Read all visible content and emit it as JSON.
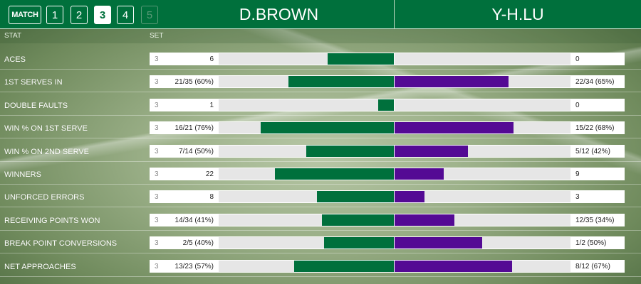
{
  "header": {
    "match_label": "MATCH",
    "sets": [
      {
        "label": "1",
        "state": "normal"
      },
      {
        "label": "2",
        "state": "normal"
      },
      {
        "label": "3",
        "state": "active"
      },
      {
        "label": "4",
        "state": "normal"
      },
      {
        "label": "5",
        "state": "disabled"
      }
    ],
    "player1": "D.BROWN",
    "player2": "Y-H.LU"
  },
  "columns": {
    "stat": "STAT",
    "set": "SET"
  },
  "colors": {
    "player1": "#00703c",
    "player2": "#540a94"
  },
  "stats": [
    {
      "label": "ACES",
      "set": "3",
      "left": "6",
      "right": "0",
      "left_frac": 0.38,
      "right_frac": 0.0
    },
    {
      "label": "1ST SERVES IN",
      "set": "3",
      "left": "21/35 (60%)",
      "right": "22/34 (65%)",
      "left_frac": 0.6,
      "right_frac": 0.65
    },
    {
      "label": "DOUBLE FAULTS",
      "set": "3",
      "left": "1",
      "right": "0",
      "left_frac": 0.09,
      "right_frac": 0.0
    },
    {
      "label": "WIN % ON 1ST SERVE",
      "set": "3",
      "left": "16/21 (76%)",
      "right": "15/22 (68%)",
      "left_frac": 0.76,
      "right_frac": 0.68
    },
    {
      "label": "WIN % ON 2ND SERVE",
      "set": "3",
      "left": "7/14 (50%)",
      "right": "5/12 (42%)",
      "left_frac": 0.5,
      "right_frac": 0.42
    },
    {
      "label": "WINNERS",
      "set": "3",
      "left": "22",
      "right": "9",
      "left_frac": 0.68,
      "right_frac": 0.28
    },
    {
      "label": "UNFORCED ERRORS",
      "set": "3",
      "left": "8",
      "right": "3",
      "left_frac": 0.44,
      "right_frac": 0.17
    },
    {
      "label": "RECEIVING POINTS WON",
      "set": "3",
      "left": "14/34 (41%)",
      "right": "12/35 (34%)",
      "left_frac": 0.41,
      "right_frac": 0.34
    },
    {
      "label": "BREAK POINT CONVERSIONS",
      "set": "3",
      "left": "2/5 (40%)",
      "right": "1/2 (50%)",
      "left_frac": 0.4,
      "right_frac": 0.5
    },
    {
      "label": "NET APPROACHES",
      "set": "3",
      "left": "13/23 (57%)",
      "right": "8/12 (67%)",
      "left_frac": 0.57,
      "right_frac": 0.67
    }
  ]
}
